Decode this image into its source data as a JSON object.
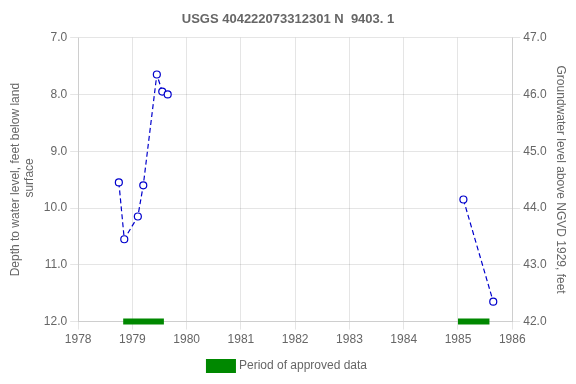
{
  "chart_data": {
    "type": "line",
    "title": "USGS 404222073312301 N  9403. 1",
    "ylabel": "Depth to water level, feet below land\n surface",
    "y2label": "Groundwater level above NGVD 1929, feet",
    "xlim": [
      1978,
      1986
    ],
    "xticks": [
      1978,
      1979,
      1980,
      1981,
      1982,
      1983,
      1984,
      1985,
      1986
    ],
    "ylim": [
      12.0,
      7.0
    ],
    "yticks": [
      {
        "value": 7.0,
        "label": "7.0"
      },
      {
        "value": 8.0,
        "label": "8.0"
      },
      {
        "value": 9.0,
        "label": "9.0"
      },
      {
        "value": 10.0,
        "label": "10.0"
      },
      {
        "value": 11.0,
        "label": "11.0"
      },
      {
        "value": 12.0,
        "label": "12.0"
      }
    ],
    "y2lim": [
      42.0,
      47.0
    ],
    "y2ticks": [
      {
        "value": 42.0,
        "label": "42.0"
      },
      {
        "value": 43.0,
        "label": "43.0"
      },
      {
        "value": 44.0,
        "label": "44.0"
      },
      {
        "value": 45.0,
        "label": "45.0"
      },
      {
        "value": 46.0,
        "label": "46.0"
      },
      {
        "value": 47.0,
        "label": "47.0"
      }
    ],
    "grid": true,
    "legend": "bottom",
    "series": [
      {
        "color": "#0000cc",
        "marker": "o",
        "line_style": "dashed",
        "x": [
          1978.75,
          1978.85,
          1979.1,
          1979.2,
          1979.45,
          1979.55,
          1979.65
        ],
        "values": [
          9.55,
          10.55,
          10.15,
          9.6,
          7.65,
          7.95,
          8.0
        ]
      },
      {
        "color": "#0000cc",
        "marker": "o",
        "line_style": "dashed",
        "x": [
          1985.1,
          1985.65
        ],
        "values": [
          9.85,
          11.65
        ]
      }
    ],
    "approved_periods": {
      "name": "Period of approved data",
      "color": "#008800",
      "ranges": [
        [
          1978.83,
          1979.58
        ],
        [
          1985.0,
          1985.58
        ]
      ]
    }
  }
}
